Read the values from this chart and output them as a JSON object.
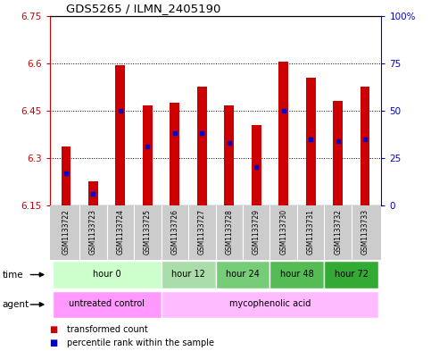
{
  "title": "GDS5265 / ILMN_2405190",
  "samples": [
    "GSM1133722",
    "GSM1133723",
    "GSM1133724",
    "GSM1133725",
    "GSM1133726",
    "GSM1133727",
    "GSM1133728",
    "GSM1133729",
    "GSM1133730",
    "GSM1133731",
    "GSM1133732",
    "GSM1133733"
  ],
  "transformed_count": [
    6.335,
    6.225,
    6.595,
    6.465,
    6.475,
    6.525,
    6.465,
    6.405,
    6.605,
    6.555,
    6.48,
    6.525
  ],
  "percentile_rank": [
    17,
    6,
    50,
    31,
    38,
    38,
    33,
    20,
    50,
    35,
    34,
    35
  ],
  "y_min": 6.15,
  "y_max": 6.75,
  "y_ticks": [
    6.15,
    6.3,
    6.45,
    6.6,
    6.75
  ],
  "y_tick_labels": [
    "6.15",
    "6.3",
    "6.45",
    "6.6",
    "6.75"
  ],
  "right_y_ticks": [
    0,
    25,
    50,
    75,
    100
  ],
  "right_y_tick_labels": [
    "0",
    "25",
    "50",
    "75",
    "100%"
  ],
  "bar_color": "#cc0000",
  "dot_color": "#0000cc",
  "background_color": "#ffffff",
  "bar_width": 0.35,
  "time_groups": [
    {
      "label": "hour 0",
      "start": 0,
      "end": 3,
      "color": "#ccffcc"
    },
    {
      "label": "hour 12",
      "start": 4,
      "end": 5,
      "color": "#aaddaa"
    },
    {
      "label": "hour 24",
      "start": 6,
      "end": 7,
      "color": "#77cc77"
    },
    {
      "label": "hour 48",
      "start": 8,
      "end": 9,
      "color": "#55bb55"
    },
    {
      "label": "hour 72",
      "start": 10,
      "end": 11,
      "color": "#33aa33"
    }
  ],
  "legend_red": "transformed count",
  "legend_blue": "percentile rank within the sample",
  "xlabel_color": "#cc0000",
  "right_axis_color": "#0000cc",
  "sample_bg": "#cccccc",
  "agent_untreated_color": "#ff99ff",
  "agent_myco_color": "#ffbbff"
}
